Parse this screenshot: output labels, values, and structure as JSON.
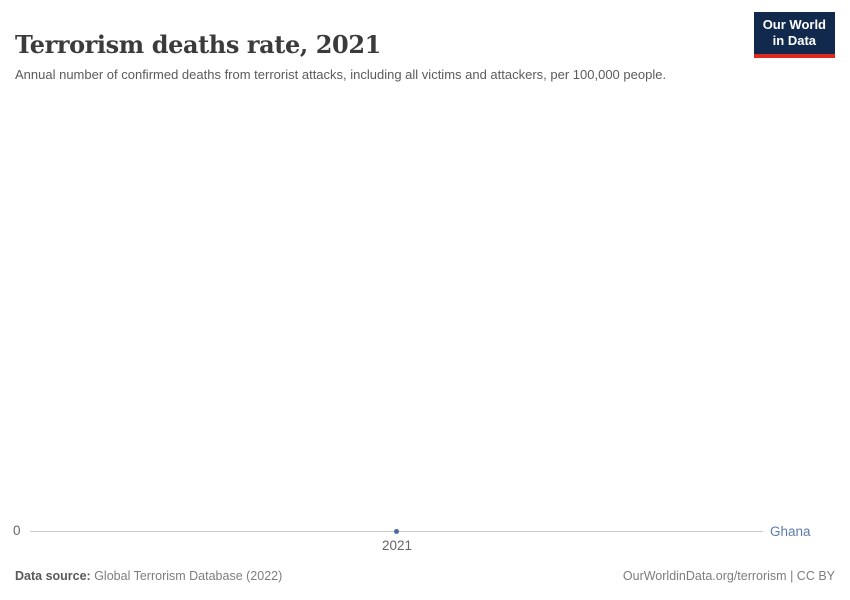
{
  "header": {
    "title": "Terrorism deaths rate, 2021",
    "subtitle": "Annual number of confirmed deaths from terrorist attacks, including all victims and attackers, per 100,000 people.",
    "logo": {
      "line1": "Our World",
      "line2": "in Data"
    }
  },
  "chart_data": {
    "type": "line",
    "title": "Terrorism deaths rate, 2021",
    "subtitle": "Annual number of confirmed deaths from terrorist attacks, including all victims and attackers, per 100,000 people.",
    "x": [
      2021
    ],
    "series": [
      {
        "name": "Ghana",
        "values": [
          0
        ]
      }
    ],
    "x_tick_labels": [
      "2021"
    ],
    "y_tick_labels": [
      "0"
    ],
    "ylim": [
      0,
      null
    ],
    "grid": false,
    "legend_position": "right-of-line"
  },
  "footer": {
    "datasource_label": "Data source:",
    "datasource_value": " Global Terrorism Database (2022)",
    "attribution": "OurWorldinData.org/terrorism | CC BY"
  },
  "colors": {
    "series_blue": "#4c6a9c",
    "entity_label_blue": "#5b7ca9",
    "logo_background": "#12294e",
    "logo_stripe_red": "#dd2a20",
    "axis_line_gray": "#c8c8c8",
    "tick_text_gray": "#666666",
    "title_gray": "#3b3b3b"
  }
}
